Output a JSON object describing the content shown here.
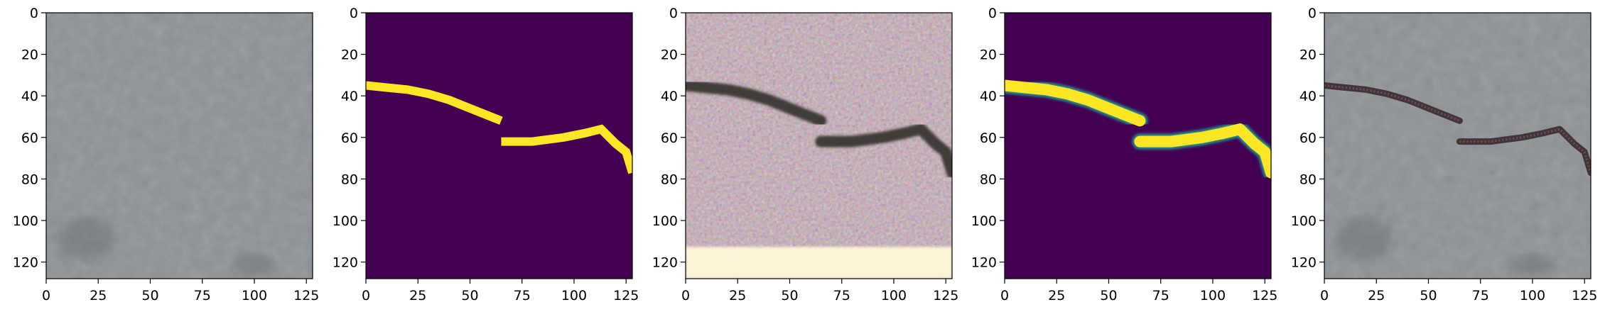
{
  "figure": {
    "panels": [
      {
        "id": "original-image",
        "kind": "photo-concrete"
      },
      {
        "id": "ground-truth-mask",
        "kind": "mask"
      },
      {
        "id": "saliency-map",
        "kind": "noisy-saliency"
      },
      {
        "id": "predicted-mask",
        "kind": "soft-mask"
      },
      {
        "id": "overlay-image",
        "kind": "photo-overlay"
      }
    ],
    "x_ticks": [
      "0",
      "25",
      "50",
      "75",
      "100",
      "125"
    ],
    "y_ticks": [
      "0",
      "20",
      "40",
      "60",
      "80",
      "100",
      "120"
    ],
    "image_size": 128,
    "colors": {
      "mask_background": "#440154",
      "mask_crack": "#fde725",
      "concrete": "#8d9296"
    }
  },
  "crack": {
    "segment_a": [
      [
        0,
        35
      ],
      [
        10,
        36
      ],
      [
        20,
        37
      ],
      [
        30,
        39
      ],
      [
        40,
        42
      ],
      [
        50,
        46
      ],
      [
        60,
        50
      ],
      [
        65,
        52
      ]
    ],
    "segment_b": [
      [
        65,
        62
      ],
      [
        80,
        62
      ],
      [
        95,
        60
      ],
      [
        105,
        58
      ],
      [
        113,
        56
      ],
      [
        120,
        63
      ],
      [
        125,
        67
      ],
      [
        128,
        77
      ]
    ]
  }
}
